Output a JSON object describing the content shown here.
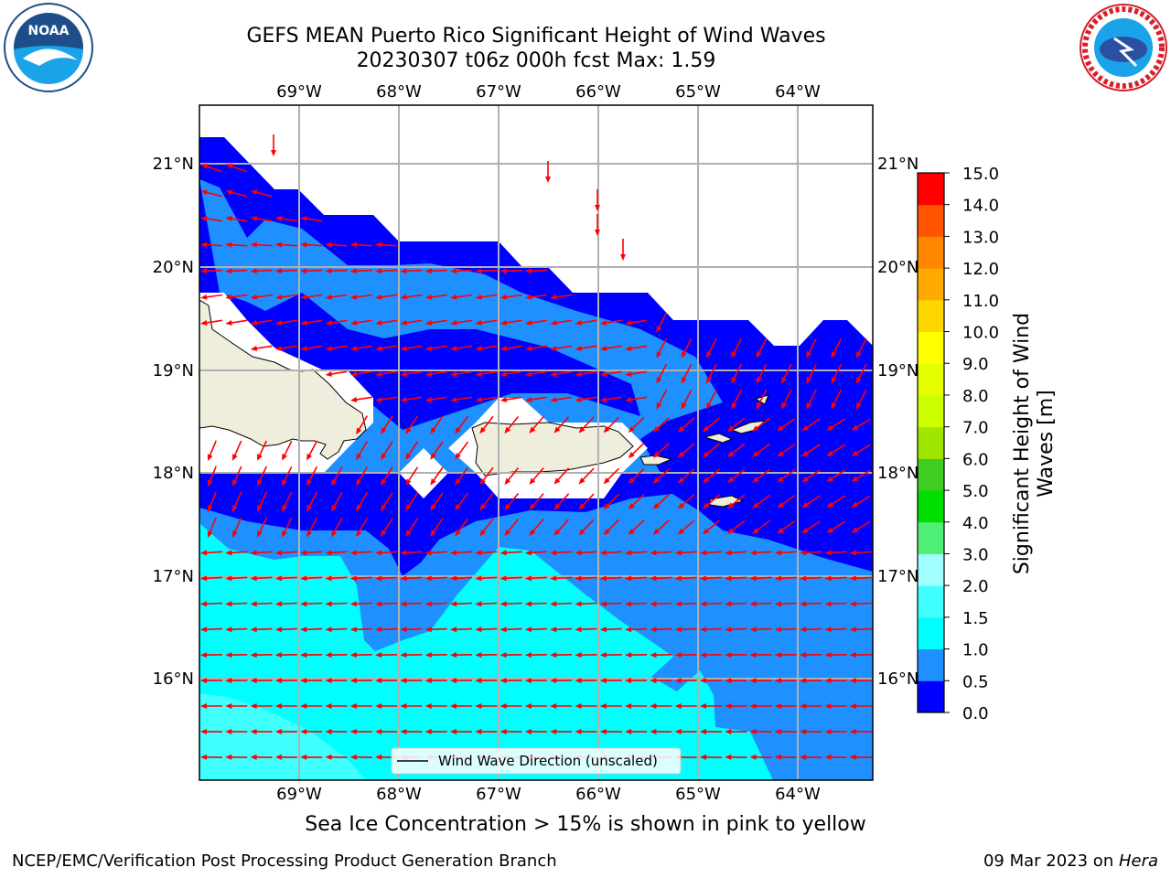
{
  "header": {
    "title_line1": "GEFS MEAN Puerto Rico Significant Height of Wind Waves",
    "title_line2": "20230307 t06z 000h fcst   Max: 1.59"
  },
  "logos": {
    "left_name": "noaa-logo",
    "left_text": "NOAA",
    "right_name": "national-weather-service-logo"
  },
  "map": {
    "lon_labels": [
      "69°W",
      "68°W",
      "67°W",
      "66°W",
      "65°W",
      "64°W"
    ],
    "lat_labels": [
      "21°N",
      "20°N",
      "19°N",
      "18°N",
      "17°N",
      "16°N"
    ],
    "legend_label": "Wind Wave Direction (unscaled)",
    "colors": {
      "land": "#efeedc",
      "arrow": "#ff0000",
      "grid": "#b0b0b0"
    }
  },
  "colorbar": {
    "label": "Significant Height of Wind Waves [m]",
    "levels": [
      "0.0",
      "0.5",
      "1.0",
      "1.5",
      "2.0",
      "3.0",
      "4.0",
      "5.0",
      "6.0",
      "7.0",
      "8.0",
      "9.0",
      "10.0",
      "11.0",
      "12.0",
      "13.0",
      "14.0",
      "15.0"
    ],
    "colors": [
      "#0000ff",
      "#1e90ff",
      "#00ffff",
      "#40ffff",
      "#a0ffff",
      "#50f078",
      "#00e000",
      "#40cc20",
      "#a0e600",
      "#ccff00",
      "#e6ff00",
      "#ffff00",
      "#ffd700",
      "#ffaa00",
      "#ff8800",
      "#ff5500",
      "#ff0000"
    ]
  },
  "note": "Sea Ice Concentration > 15% is shown in pink to yellow",
  "footer": {
    "left": "NCEP/EMC/Verification Post Processing Product Generation Branch",
    "right_prefix": "09 Mar 2023 on ",
    "right_host": "Hera"
  }
}
